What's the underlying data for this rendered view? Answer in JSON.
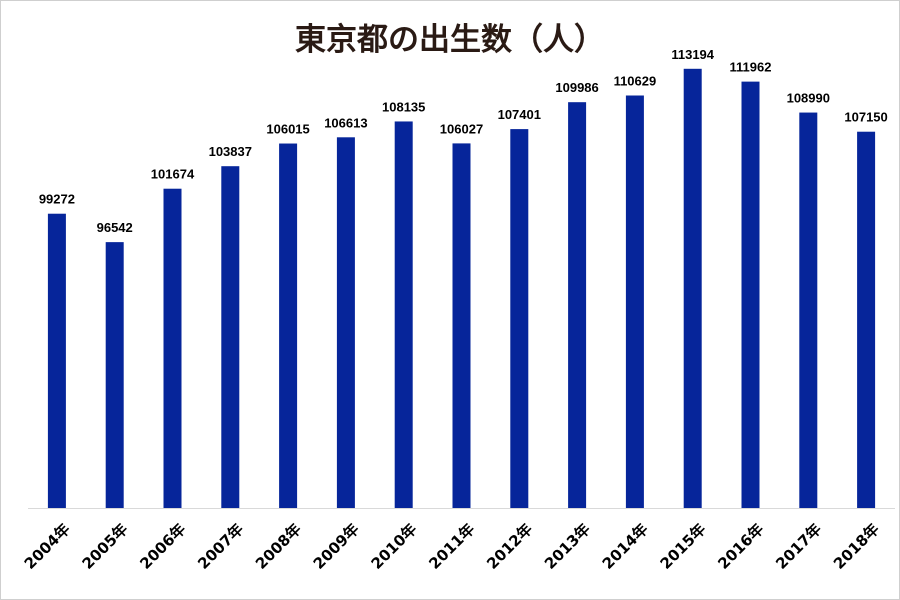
{
  "chart_data": {
    "type": "bar",
    "title": "東京都の出生数（人）",
    "categories": [
      "2004年",
      "2005年",
      "2006年",
      "2007年",
      "2008年",
      "2009年",
      "2010年",
      "2011年",
      "2012年",
      "2013年",
      "2014年",
      "2015年",
      "2016年",
      "2017年",
      "2018年"
    ],
    "values": [
      99272,
      96542,
      101674,
      103837,
      106015,
      106613,
      108135,
      106027,
      107401,
      109986,
      110629,
      113194,
      111962,
      108990,
      107150
    ],
    "ylim": [
      71000,
      115000
    ],
    "xlabel": "",
    "ylabel": "",
    "grid": false,
    "legend": "none",
    "bar_color": "#06259a",
    "axis_color": "#d9d9d9"
  }
}
